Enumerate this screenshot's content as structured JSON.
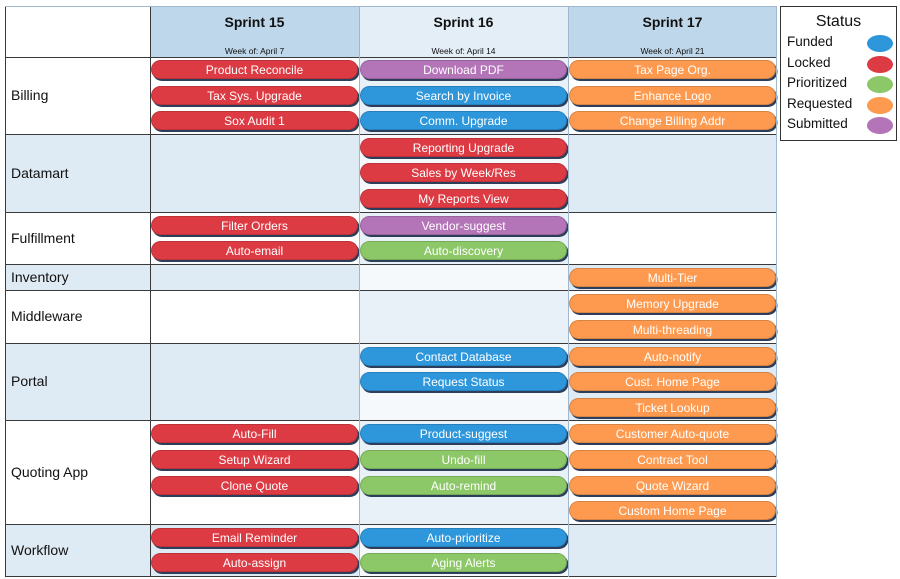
{
  "colors": {
    "Funded": "#2e97dc",
    "Locked": "#dd3b44",
    "Prioritized": "#8cc867",
    "Requested": "#fd9a4f",
    "Submitted": "#b374b8"
  },
  "sprints": [
    {
      "title": "Sprint 15",
      "subtitle": "Week of: April 7"
    },
    {
      "title": "Sprint 16",
      "subtitle": "Week of: April 14"
    },
    {
      "title": "Sprint 17",
      "subtitle": "Week of: April 21"
    }
  ],
  "legend": {
    "title": "Status",
    "items": [
      "Funded",
      "Locked",
      "Prioritized",
      "Requested",
      "Submitted"
    ]
  },
  "rows": [
    {
      "label": "Billing",
      "slots": 3,
      "cols": [
        [
          {
            "text": "Product Reconcile",
            "status": "Locked"
          },
          {
            "text": "Tax Sys. Upgrade",
            "status": "Locked"
          },
          {
            "text": "Sox Audit 1",
            "status": "Locked"
          }
        ],
        [
          {
            "text": "Download PDF",
            "status": "Submitted"
          },
          {
            "text": "Search by Invoice",
            "status": "Funded"
          },
          {
            "text": "Comm. Upgrade",
            "status": "Funded"
          }
        ],
        [
          {
            "text": "Tax Page Org.",
            "status": "Requested"
          },
          {
            "text": "Enhance Logo",
            "status": "Requested"
          },
          {
            "text": "Change Billing Addr",
            "status": "Requested"
          }
        ]
      ]
    },
    {
      "label": "Datamart",
      "slots": 3,
      "cols": [
        [],
        [
          {
            "text": "Reporting Upgrade",
            "status": "Locked"
          },
          {
            "text": "Sales by Week/Res",
            "status": "Locked"
          },
          {
            "text": "My Reports View",
            "status": "Locked"
          }
        ],
        []
      ]
    },
    {
      "label": "Fulfillment",
      "slots": 2,
      "cols": [
        [
          {
            "text": "Filter Orders",
            "status": "Locked"
          },
          {
            "text": "Auto-email",
            "status": "Locked"
          }
        ],
        [
          {
            "text": "Vendor-suggest",
            "status": "Submitted"
          },
          {
            "text": "Auto-discovery",
            "status": "Prioritized"
          }
        ],
        []
      ]
    },
    {
      "label": "Inventory",
      "slots": 1,
      "cols": [
        [],
        [],
        [
          {
            "text": "Multi-Tier",
            "status": "Requested"
          }
        ]
      ]
    },
    {
      "label": "Middleware",
      "slots": 2,
      "cols": [
        [],
        [],
        [
          {
            "text": "Memory Upgrade",
            "status": "Requested"
          },
          {
            "text": "Multi-threading",
            "status": "Requested"
          }
        ]
      ]
    },
    {
      "label": "Portal",
      "slots": 3,
      "cols": [
        [],
        [
          {
            "text": "Contact Database",
            "status": "Funded"
          },
          {
            "text": "Request Status",
            "status": "Funded"
          }
        ],
        [
          {
            "text": "Auto-notify",
            "status": "Requested"
          },
          {
            "text": "Cust. Home Page",
            "status": "Requested"
          },
          {
            "text": "Ticket Lookup",
            "status": "Requested"
          }
        ]
      ]
    },
    {
      "label": "Quoting App",
      "slots": 4,
      "cols": [
        [
          {
            "text": "Auto-Fill",
            "status": "Locked"
          },
          {
            "text": "Setup Wizard",
            "status": "Locked"
          },
          {
            "text": "Clone Quote",
            "status": "Locked"
          }
        ],
        [
          {
            "text": "Product-suggest",
            "status": "Funded"
          },
          {
            "text": "Undo-fill",
            "status": "Prioritized"
          },
          {
            "text": "Auto-remind",
            "status": "Prioritized"
          }
        ],
        [
          {
            "text": "Customer Auto-quote",
            "status": "Requested"
          },
          {
            "text": "Contract Tool",
            "status": "Requested"
          },
          {
            "text": "Quote Wizard",
            "status": "Requested"
          },
          {
            "text": "Custom Home Page",
            "status": "Requested"
          }
        ]
      ]
    },
    {
      "label": "Workflow",
      "slots": 2,
      "cols": [
        [
          {
            "text": "Email Reminder",
            "status": "Locked"
          },
          {
            "text": "Auto-assign",
            "status": "Locked"
          }
        ],
        [
          {
            "text": "Auto-prioritize",
            "status": "Funded"
          },
          {
            "text": "Aging Alerts",
            "status": "Prioritized"
          }
        ],
        []
      ]
    }
  ]
}
